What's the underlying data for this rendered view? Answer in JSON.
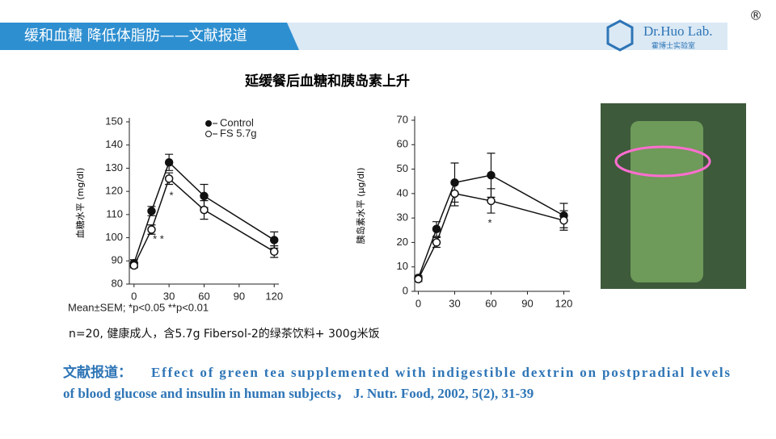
{
  "header": {
    "title": "缓和血糖 降低体脂肪——文献报道",
    "logo_name": "Dr.Huo Lab.",
    "logo_sub": "霍博士实验室",
    "mark": "®"
  },
  "slide_title": "延缓餐后血糖和胰岛素上升",
  "chart_data": [
    {
      "type": "line",
      "y_label": "血糖水平 (mg/dl)",
      "note": "Mean±SEM;  *p<0.05   **p<0.01",
      "annotations": [
        "*  *",
        "*"
      ],
      "x": [
        0,
        15,
        30,
        60,
        120
      ],
      "xlim": [
        -4,
        124
      ],
      "xticks": [
        0,
        30,
        60,
        90,
        120
      ],
      "ylim": [
        80,
        150
      ],
      "yticks": [
        80,
        90,
        100,
        110,
        120,
        130,
        140,
        150
      ],
      "series": [
        {
          "name": "Control",
          "color": "#111111",
          "marker": "filled",
          "values": [
            89,
            111.5,
            132.5,
            118,
            99
          ],
          "errors": [
            1.5,
            2,
            3.5,
            5,
            3.5
          ]
        },
        {
          "name": "FS 5.7g",
          "color": "#111111",
          "marker": "open",
          "values": [
            88,
            103.5,
            125.5,
            112,
            94
          ],
          "errors": [
            1,
            2,
            2.5,
            4,
            2.5
          ]
        }
      ]
    },
    {
      "type": "line",
      "y_label": "胰岛素水平 (μg/dl)",
      "annotations": [
        "*"
      ],
      "x": [
        0,
        15,
        30,
        60,
        120
      ],
      "xlim": [
        -3,
        125
      ],
      "xticks": [
        0,
        30,
        60,
        90,
        120
      ],
      "ylim": [
        0,
        70
      ],
      "yticks": [
        0,
        10,
        20,
        30,
        40,
        50,
        60,
        70
      ],
      "series": [
        {
          "color": "#111111",
          "marker": "filled",
          "values": [
            5.5,
            25.5,
            44.5,
            47.5,
            31
          ],
          "errors": [
            1,
            3,
            8,
            9,
            5
          ]
        },
        {
          "color": "#111111",
          "marker": "open",
          "values": [
            5,
            20,
            40,
            37,
            29
          ],
          "errors": [
            1,
            2,
            5,
            5,
            4
          ]
        }
      ]
    }
  ],
  "note": "n=20, 健康成人，含5.7g Fibersol-2的绿茶饮料+ 300g米饭",
  "reference": {
    "label": "文献报道：",
    "line1": "Effect of green tea supplemented  with indigestible  dextrin  on postpradial  levels",
    "line2": "of blood  glucose  and  insulin  in  human  subjects，   J. Nutr.  Food, 2002, 5(2),  31-39"
  }
}
